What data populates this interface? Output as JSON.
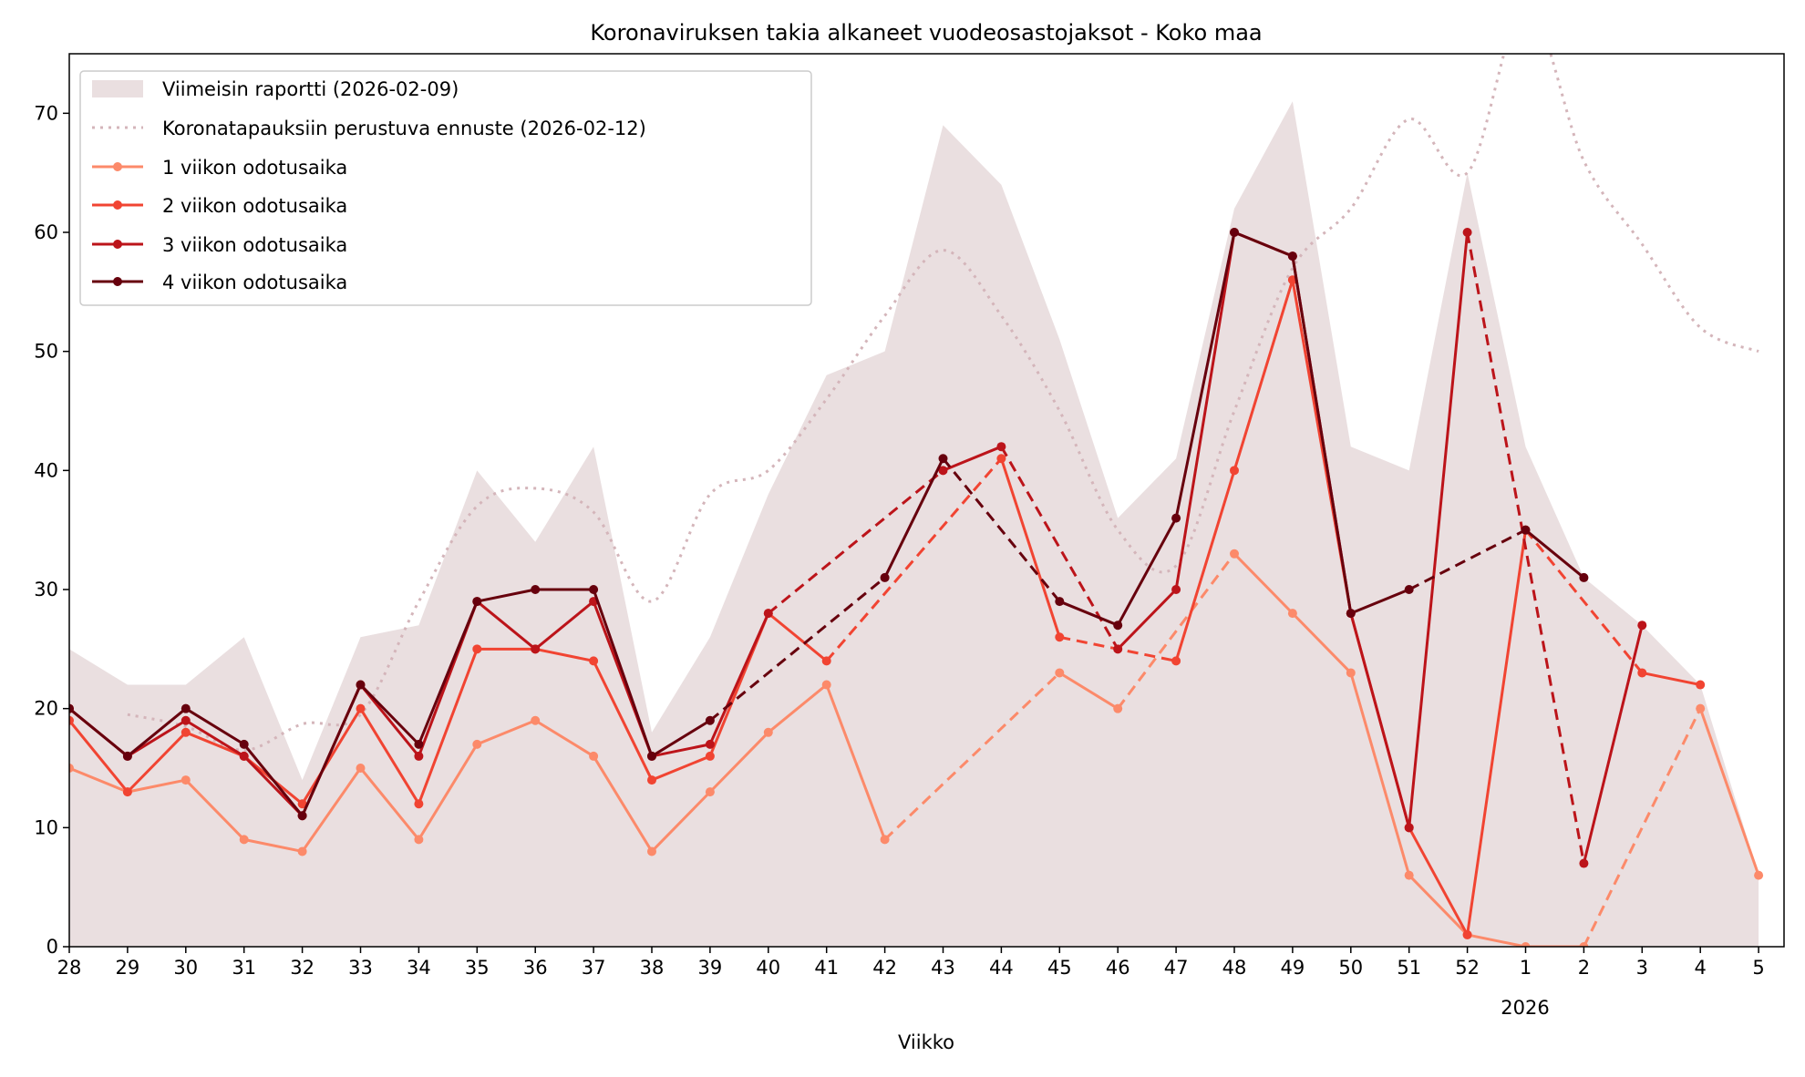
{
  "chart_data": {
    "type": "line",
    "title": "Koronaviruksen takia alkaneet vuodeosastojaksot - Koko maa",
    "xlabel": "Viikko",
    "ylabel": "",
    "year_label": "2026",
    "categories": [
      "28",
      "29",
      "30",
      "31",
      "32",
      "33",
      "34",
      "35",
      "36",
      "37",
      "38",
      "39",
      "40",
      "41",
      "42",
      "43",
      "44",
      "45",
      "46",
      "47",
      "48",
      "49",
      "50",
      "51",
      "52",
      "1",
      "2",
      "3",
      "4",
      "5"
    ],
    "ylim": [
      0,
      75
    ],
    "yticks": [
      "0",
      "10",
      "20",
      "30",
      "40",
      "50",
      "60",
      "70"
    ],
    "grid": false,
    "legend_position": "top-left",
    "area": {
      "name": "Viimeisin raportti (2026-02-09)",
      "color": "#eadfe0",
      "values": [
        25,
        22,
        22,
        26,
        14,
        26,
        27,
        40,
        34,
        42,
        18,
        26,
        38,
        48,
        50,
        69,
        64,
        51,
        36,
        41,
        62,
        71,
        42,
        40,
        65,
        42,
        31,
        27,
        22,
        6
      ]
    },
    "forecast": {
      "name": "Koronatapauksiin perustuva ennuste (2026-02-12)",
      "color": "#d4b5ba",
      "values": [
        null,
        19.5,
        18.5,
        16.5,
        18.7,
        19.5,
        29,
        37,
        38.5,
        36.5,
        29,
        38,
        40,
        46,
        53,
        58.5,
        53,
        45,
        35,
        32,
        45,
        57,
        62,
        69.5,
        65,
        79,
        66,
        59,
        52,
        50
      ]
    },
    "series": [
      {
        "name": "1 viikon odotusaika",
        "color": "#fc8a6a",
        "values": [
          15,
          13,
          14,
          9,
          8,
          15,
          9,
          17,
          19,
          16,
          8,
          13,
          18,
          22,
          9,
          null,
          null,
          23,
          20,
          null,
          33,
          28,
          23,
          6,
          1,
          0,
          0,
          null,
          20,
          6
        ]
      },
      {
        "name": "2 viikon odotusaika",
        "color": "#f14432",
        "values": [
          19,
          13,
          18,
          16,
          12,
          20,
          12,
          25,
          25,
          24,
          14,
          16,
          28,
          24,
          null,
          null,
          41,
          26,
          null,
          24,
          40,
          56,
          28,
          10,
          1,
          35,
          null,
          23,
          22,
          null
        ]
      },
      {
        "name": "3 viikon odotusaika",
        "color": "#bc141a",
        "values": [
          20,
          16,
          19,
          16,
          11,
          22,
          16,
          29,
          25,
          29,
          16,
          17,
          28,
          null,
          null,
          40,
          42,
          null,
          25,
          30,
          60,
          58,
          28,
          10,
          60,
          null,
          7,
          27,
          null,
          null
        ]
      },
      {
        "name": "4 viikon odotusaika",
        "color": "#67000d",
        "values": [
          20,
          16,
          20,
          17,
          11,
          22,
          17,
          29,
          30,
          30,
          16,
          19,
          null,
          null,
          31,
          41,
          null,
          29,
          27,
          36,
          60,
          58,
          28,
          30,
          null,
          35,
          31,
          null,
          null,
          null
        ]
      }
    ]
  }
}
